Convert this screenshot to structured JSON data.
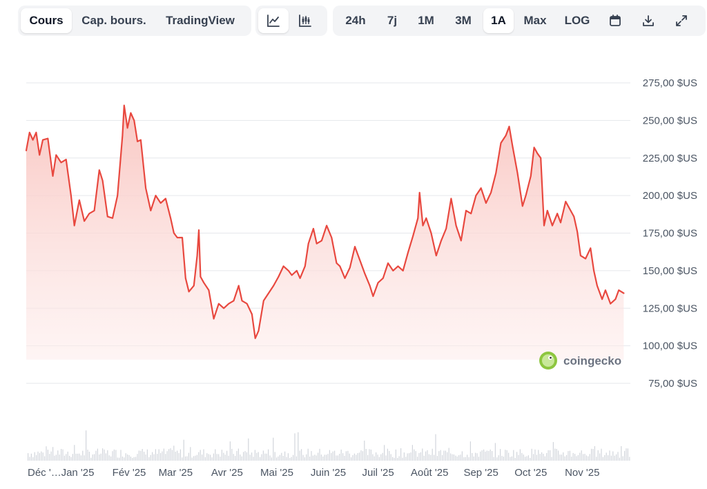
{
  "toolbar": {
    "view_tabs": [
      {
        "label": "Cours",
        "active": true
      },
      {
        "label": "Cap. bours.",
        "active": false
      },
      {
        "label": "TradingView",
        "active": false
      }
    ],
    "chart_type_buttons": [
      {
        "icon": "line-chart-icon",
        "active": true
      },
      {
        "icon": "candlestick-chart-icon",
        "active": false
      }
    ],
    "ranges": [
      {
        "label": "24h",
        "active": false
      },
      {
        "label": "7j",
        "active": false
      },
      {
        "label": "1M",
        "active": false
      },
      {
        "label": "3M",
        "active": false
      },
      {
        "label": "1A",
        "active": true
      },
      {
        "label": "Max",
        "active": false
      },
      {
        "label": "LOG",
        "active": false
      }
    ],
    "action_icons": [
      "calendar-icon",
      "download-icon",
      "fullscreen-icon"
    ]
  },
  "watermark": {
    "text": "coingecko"
  },
  "colors": {
    "line": "#e8483f",
    "fill_top": "#f9c9c5",
    "grid": "#e5e7eb",
    "volume": "#d1d5db",
    "active_bg": "#ffffff",
    "toolbar_bg": "#f3f4f6"
  },
  "chart_data": {
    "type": "area",
    "title": "",
    "y_axis": {
      "ticks": [
        75,
        100,
        125,
        150,
        175,
        200,
        225,
        250,
        275
      ],
      "tick_labels": [
        "75,00 $US",
        "100,00 $US",
        "125,00 $US",
        "150,00 $US",
        "175,00 $US",
        "200,00 $US",
        "225,00 $US",
        "250,00 $US",
        "275,00 $US"
      ],
      "range": [
        75,
        275
      ]
    },
    "x_axis": {
      "range": [
        "2024-12-01",
        "2025-11-30"
      ],
      "ticks": [
        "2024-12-01",
        "2025-01-01",
        "2025-02-01",
        "2025-03-01",
        "2025-04-01",
        "2025-05-01",
        "2025-06-01",
        "2025-07-01",
        "2025-08-01",
        "2025-09-01",
        "2025-10-01",
        "2025-11-01"
      ],
      "tick_labels": [
        "Déc '…",
        "Jan '25",
        "Fév '25",
        "Mar '25",
        "Avr '25",
        "Mai '25",
        "Juin '25",
        "Juil '25",
        "Août '25",
        "Sep '25",
        "Oct '25",
        "Nov '25"
      ]
    },
    "grid": true,
    "series": [
      {
        "points": [
          [
            "2024-12-01",
            230
          ],
          [
            "2024-12-03",
            242
          ],
          [
            "2024-12-05",
            237
          ],
          [
            "2024-12-07",
            242
          ],
          [
            "2024-12-09",
            227
          ],
          [
            "2024-12-11",
            237
          ],
          [
            "2024-12-14",
            238
          ],
          [
            "2024-12-17",
            213
          ],
          [
            "2024-12-19",
            227
          ],
          [
            "2024-12-22",
            222
          ],
          [
            "2024-12-25",
            224
          ],
          [
            "2024-12-28",
            200
          ],
          [
            "2024-12-30",
            180
          ],
          [
            "2025-01-02",
            197
          ],
          [
            "2025-01-05",
            183
          ],
          [
            "2025-01-08",
            188
          ],
          [
            "2025-01-11",
            190
          ],
          [
            "2025-01-14",
            217
          ],
          [
            "2025-01-16",
            210
          ],
          [
            "2025-01-19",
            186
          ],
          [
            "2025-01-22",
            185
          ],
          [
            "2025-01-25",
            200
          ],
          [
            "2025-01-28",
            240
          ],
          [
            "2025-01-29",
            260
          ],
          [
            "2025-01-31",
            245
          ],
          [
            "2025-02-02",
            255
          ],
          [
            "2025-02-04",
            250
          ],
          [
            "2025-02-06",
            236
          ],
          [
            "2025-02-08",
            237
          ],
          [
            "2025-02-11",
            205
          ],
          [
            "2025-02-14",
            190
          ],
          [
            "2025-02-17",
            200
          ],
          [
            "2025-02-20",
            195
          ],
          [
            "2025-02-23",
            198
          ],
          [
            "2025-02-26",
            185
          ],
          [
            "2025-02-28",
            175
          ],
          [
            "2025-03-02",
            172
          ],
          [
            "2025-03-05",
            172
          ],
          [
            "2025-03-07",
            145
          ],
          [
            "2025-03-09",
            136
          ],
          [
            "2025-03-12",
            140
          ],
          [
            "2025-03-14",
            160
          ],
          [
            "2025-03-15",
            177
          ],
          [
            "2025-03-16",
            146
          ],
          [
            "2025-03-18",
            142
          ],
          [
            "2025-03-21",
            137
          ],
          [
            "2025-03-24",
            118
          ],
          [
            "2025-03-27",
            128
          ],
          [
            "2025-03-30",
            125
          ],
          [
            "2025-04-02",
            128
          ],
          [
            "2025-04-05",
            130
          ],
          [
            "2025-04-08",
            140
          ],
          [
            "2025-04-10",
            130
          ],
          [
            "2025-04-13",
            128
          ],
          [
            "2025-04-16",
            121
          ],
          [
            "2025-04-18",
            105
          ],
          [
            "2025-04-20",
            110
          ],
          [
            "2025-04-23",
            130
          ],
          [
            "2025-04-26",
            135
          ],
          [
            "2025-04-29",
            140
          ],
          [
            "2025-05-02",
            146
          ],
          [
            "2025-05-05",
            153
          ],
          [
            "2025-05-08",
            150
          ],
          [
            "2025-05-10",
            147
          ],
          [
            "2025-05-13",
            150
          ],
          [
            "2025-05-15",
            145
          ],
          [
            "2025-05-18",
            153
          ],
          [
            "2025-05-20",
            168
          ],
          [
            "2025-05-23",
            178
          ],
          [
            "2025-05-25",
            168
          ],
          [
            "2025-05-28",
            170
          ],
          [
            "2025-05-31",
            180
          ],
          [
            "2025-06-03",
            172
          ],
          [
            "2025-06-06",
            155
          ],
          [
            "2025-06-08",
            153
          ],
          [
            "2025-06-11",
            145
          ],
          [
            "2025-06-14",
            152
          ],
          [
            "2025-06-17",
            166
          ],
          [
            "2025-06-20",
            157
          ],
          [
            "2025-06-23",
            148
          ],
          [
            "2025-06-26",
            140
          ],
          [
            "2025-06-28",
            133
          ],
          [
            "2025-07-01",
            142
          ],
          [
            "2025-07-04",
            145
          ],
          [
            "2025-07-07",
            155
          ],
          [
            "2025-07-10",
            150
          ],
          [
            "2025-07-13",
            153
          ],
          [
            "2025-07-16",
            150
          ],
          [
            "2025-07-19",
            162
          ],
          [
            "2025-07-22",
            173
          ],
          [
            "2025-07-25",
            185
          ],
          [
            "2025-07-26",
            202
          ],
          [
            "2025-07-28",
            180
          ],
          [
            "2025-07-30",
            185
          ],
          [
            "2025-08-02",
            175
          ],
          [
            "2025-08-05",
            160
          ],
          [
            "2025-08-08",
            170
          ],
          [
            "2025-08-11",
            178
          ],
          [
            "2025-08-14",
            198
          ],
          [
            "2025-08-17",
            180
          ],
          [
            "2025-08-20",
            170
          ],
          [
            "2025-08-23",
            190
          ],
          [
            "2025-08-26",
            188
          ],
          [
            "2025-08-29",
            200
          ],
          [
            "2025-09-01",
            205
          ],
          [
            "2025-09-04",
            195
          ],
          [
            "2025-09-07",
            202
          ],
          [
            "2025-09-10",
            215
          ],
          [
            "2025-09-13",
            235
          ],
          [
            "2025-09-16",
            240
          ],
          [
            "2025-09-18",
            246
          ],
          [
            "2025-09-20",
            233
          ],
          [
            "2025-09-23",
            215
          ],
          [
            "2025-09-26",
            193
          ],
          [
            "2025-09-28",
            200
          ],
          [
            "2025-10-01",
            213
          ],
          [
            "2025-10-03",
            232
          ],
          [
            "2025-10-05",
            228
          ],
          [
            "2025-10-07",
            225
          ],
          [
            "2025-10-09",
            180
          ],
          [
            "2025-10-11",
            190
          ],
          [
            "2025-10-14",
            180
          ],
          [
            "2025-10-17",
            188
          ],
          [
            "2025-10-19",
            182
          ],
          [
            "2025-10-22",
            196
          ],
          [
            "2025-10-25",
            190
          ],
          [
            "2025-10-27",
            186
          ],
          [
            "2025-10-29",
            176
          ],
          [
            "2025-10-31",
            160
          ],
          [
            "2025-11-03",
            158
          ],
          [
            "2025-11-06",
            165
          ],
          [
            "2025-11-08",
            150
          ],
          [
            "2025-11-10",
            140
          ],
          [
            "2025-11-13",
            131
          ],
          [
            "2025-11-15",
            137
          ],
          [
            "2025-11-18",
            128
          ],
          [
            "2025-11-21",
            131
          ],
          [
            "2025-11-23",
            137
          ],
          [
            "2025-11-26",
            135
          ]
        ]
      }
    ]
  }
}
